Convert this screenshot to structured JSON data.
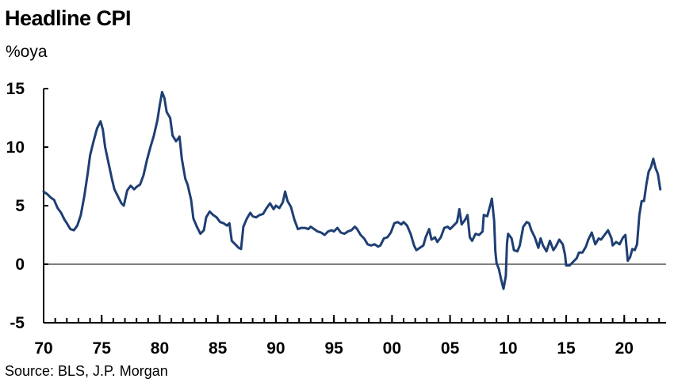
{
  "header": {
    "title": "Headline CPI",
    "unit": "%oya"
  },
  "footer": {
    "source": "Source: BLS, J.P. Morgan"
  },
  "chart_data": {
    "type": "line",
    "title": "Headline CPI",
    "ylabel": "%oya",
    "xlabel": "",
    "xlim": [
      1970,
      2023.6
    ],
    "ylim": [
      -5,
      15
    ],
    "yticks": [
      -5,
      0,
      5,
      10,
      15
    ],
    "xticks": [
      {
        "value": 1970,
        "label": "70"
      },
      {
        "value": 1975,
        "label": "75"
      },
      {
        "value": 1980,
        "label": "80"
      },
      {
        "value": 1985,
        "label": "85"
      },
      {
        "value": 1990,
        "label": "90"
      },
      {
        "value": 1995,
        "label": "95"
      },
      {
        "value": 2000,
        "label": "00"
      },
      {
        "value": 2005,
        "label": "05"
      },
      {
        "value": 2010,
        "label": "10"
      },
      {
        "value": 2015,
        "label": "15"
      },
      {
        "value": 2020,
        "label": "20"
      }
    ],
    "zero_line": true,
    "grid": false,
    "line_color": "#1f3f73",
    "series": [
      {
        "points": [
          [
            1970.0,
            6.2
          ],
          [
            1970.3,
            6.0
          ],
          [
            1970.6,
            5.7
          ],
          [
            1970.9,
            5.5
          ],
          [
            1971.2,
            4.8
          ],
          [
            1971.5,
            4.4
          ],
          [
            1971.8,
            3.8
          ],
          [
            1972.0,
            3.5
          ],
          [
            1972.3,
            3.0
          ],
          [
            1972.6,
            2.9
          ],
          [
            1972.9,
            3.3
          ],
          [
            1973.2,
            4.2
          ],
          [
            1973.5,
            5.8
          ],
          [
            1973.8,
            7.8
          ],
          [
            1974.0,
            9.3
          ],
          [
            1974.3,
            10.5
          ],
          [
            1974.6,
            11.6
          ],
          [
            1974.9,
            12.2
          ],
          [
            1975.1,
            11.5
          ],
          [
            1975.3,
            10.0
          ],
          [
            1975.6,
            8.6
          ],
          [
            1975.9,
            7.2
          ],
          [
            1976.1,
            6.4
          ],
          [
            1976.4,
            5.8
          ],
          [
            1976.7,
            5.2
          ],
          [
            1976.9,
            5.0
          ],
          [
            1977.2,
            6.3
          ],
          [
            1977.5,
            6.7
          ],
          [
            1977.8,
            6.4
          ],
          [
            1978.0,
            6.6
          ],
          [
            1978.3,
            6.8
          ],
          [
            1978.6,
            7.6
          ],
          [
            1978.9,
            8.9
          ],
          [
            1979.2,
            10.0
          ],
          [
            1979.5,
            11.0
          ],
          [
            1979.8,
            12.3
          ],
          [
            1980.0,
            13.6
          ],
          [
            1980.2,
            14.7
          ],
          [
            1980.4,
            14.2
          ],
          [
            1980.6,
            13.0
          ],
          [
            1980.9,
            12.5
          ],
          [
            1981.1,
            11.0
          ],
          [
            1981.4,
            10.5
          ],
          [
            1981.7,
            10.9
          ],
          [
            1981.9,
            9.0
          ],
          [
            1982.2,
            7.3
          ],
          [
            1982.4,
            6.8
          ],
          [
            1982.7,
            5.5
          ],
          [
            1982.9,
            3.9
          ],
          [
            1983.2,
            3.2
          ],
          [
            1983.5,
            2.6
          ],
          [
            1983.8,
            2.9
          ],
          [
            1984.0,
            4.0
          ],
          [
            1984.3,
            4.5
          ],
          [
            1984.6,
            4.2
          ],
          [
            1984.9,
            4.0
          ],
          [
            1985.2,
            3.6
          ],
          [
            1985.5,
            3.5
          ],
          [
            1985.8,
            3.3
          ],
          [
            1986.0,
            3.5
          ],
          [
            1986.2,
            2.0
          ],
          [
            1986.5,
            1.7
          ],
          [
            1986.8,
            1.4
          ],
          [
            1987.0,
            1.3
          ],
          [
            1987.2,
            3.2
          ],
          [
            1987.5,
            3.9
          ],
          [
            1987.8,
            4.4
          ],
          [
            1988.0,
            4.1
          ],
          [
            1988.3,
            4.0
          ],
          [
            1988.6,
            4.2
          ],
          [
            1988.9,
            4.3
          ],
          [
            1989.2,
            4.8
          ],
          [
            1989.5,
            5.2
          ],
          [
            1989.8,
            4.7
          ],
          [
            1990.0,
            5.0
          ],
          [
            1990.3,
            4.8
          ],
          [
            1990.6,
            5.3
          ],
          [
            1990.8,
            6.2
          ],
          [
            1991.0,
            5.4
          ],
          [
            1991.3,
            4.9
          ],
          [
            1991.6,
            3.8
          ],
          [
            1991.9,
            3.0
          ],
          [
            1992.2,
            3.1
          ],
          [
            1992.5,
            3.1
          ],
          [
            1992.8,
            3.0
          ],
          [
            1993.0,
            3.2
          ],
          [
            1993.3,
            3.0
          ],
          [
            1993.6,
            2.8
          ],
          [
            1993.9,
            2.7
          ],
          [
            1994.2,
            2.5
          ],
          [
            1994.5,
            2.8
          ],
          [
            1994.8,
            2.9
          ],
          [
            1995.0,
            2.8
          ],
          [
            1995.3,
            3.1
          ],
          [
            1995.6,
            2.7
          ],
          [
            1995.9,
            2.6
          ],
          [
            1996.2,
            2.8
          ],
          [
            1996.5,
            2.9
          ],
          [
            1996.8,
            3.2
          ],
          [
            1997.0,
            3.0
          ],
          [
            1997.3,
            2.5
          ],
          [
            1997.6,
            2.2
          ],
          [
            1997.9,
            1.7
          ],
          [
            1998.2,
            1.6
          ],
          [
            1998.5,
            1.7
          ],
          [
            1998.8,
            1.5
          ],
          [
            1999.0,
            1.6
          ],
          [
            1999.3,
            2.2
          ],
          [
            1999.6,
            2.3
          ],
          [
            1999.9,
            2.7
          ],
          [
            2000.2,
            3.5
          ],
          [
            2000.5,
            3.6
          ],
          [
            2000.8,
            3.4
          ],
          [
            2001.0,
            3.6
          ],
          [
            2001.3,
            3.3
          ],
          [
            2001.6,
            2.6
          ],
          [
            2001.9,
            1.6
          ],
          [
            2002.1,
            1.2
          ],
          [
            2002.4,
            1.4
          ],
          [
            2002.7,
            1.6
          ],
          [
            2002.9,
            2.3
          ],
          [
            2003.2,
            3.0
          ],
          [
            2003.4,
            2.1
          ],
          [
            2003.7,
            2.3
          ],
          [
            2003.9,
            1.9
          ],
          [
            2004.2,
            2.3
          ],
          [
            2004.5,
            3.1
          ],
          [
            2004.8,
            3.2
          ],
          [
            2005.0,
            3.0
          ],
          [
            2005.3,
            3.3
          ],
          [
            2005.6,
            3.6
          ],
          [
            2005.8,
            4.7
          ],
          [
            2006.0,
            3.4
          ],
          [
            2006.3,
            3.8
          ],
          [
            2006.5,
            4.2
          ],
          [
            2006.7,
            2.3
          ],
          [
            2006.9,
            2.0
          ],
          [
            2007.2,
            2.6
          ],
          [
            2007.5,
            2.5
          ],
          [
            2007.8,
            2.8
          ],
          [
            2007.9,
            4.2
          ],
          [
            2008.2,
            4.1
          ],
          [
            2008.5,
            5.2
          ],
          [
            2008.6,
            5.6
          ],
          [
            2008.8,
            3.7
          ],
          [
            2008.9,
            1.1
          ],
          [
            2009.0,
            0.1
          ],
          [
            2009.2,
            -0.4
          ],
          [
            2009.4,
            -1.3
          ],
          [
            2009.6,
            -2.1
          ],
          [
            2009.8,
            -1.0
          ],
          [
            2009.9,
            1.8
          ],
          [
            2010.0,
            2.6
          ],
          [
            2010.3,
            2.2
          ],
          [
            2010.5,
            1.2
          ],
          [
            2010.8,
            1.1
          ],
          [
            2011.0,
            1.6
          ],
          [
            2011.3,
            3.2
          ],
          [
            2011.6,
            3.6
          ],
          [
            2011.8,
            3.5
          ],
          [
            2012.0,
            2.9
          ],
          [
            2012.3,
            2.3
          ],
          [
            2012.6,
            1.4
          ],
          [
            2012.8,
            2.2
          ],
          [
            2013.0,
            1.6
          ],
          [
            2013.3,
            1.1
          ],
          [
            2013.6,
            2.0
          ],
          [
            2013.9,
            1.2
          ],
          [
            2014.1,
            1.5
          ],
          [
            2014.4,
            2.1
          ],
          [
            2014.7,
            1.7
          ],
          [
            2014.9,
            0.8
          ],
          [
            2015.0,
            -0.1
          ],
          [
            2015.3,
            -0.1
          ],
          [
            2015.6,
            0.2
          ],
          [
            2015.9,
            0.5
          ],
          [
            2016.1,
            1.0
          ],
          [
            2016.4,
            1.0
          ],
          [
            2016.7,
            1.5
          ],
          [
            2016.9,
            2.1
          ],
          [
            2017.2,
            2.7
          ],
          [
            2017.5,
            1.7
          ],
          [
            2017.8,
            2.2
          ],
          [
            2018.0,
            2.1
          ],
          [
            2018.3,
            2.5
          ],
          [
            2018.6,
            2.9
          ],
          [
            2018.9,
            2.2
          ],
          [
            2019.0,
            1.6
          ],
          [
            2019.3,
            1.9
          ],
          [
            2019.6,
            1.7
          ],
          [
            2019.9,
            2.3
          ],
          [
            2020.1,
            2.5
          ],
          [
            2020.3,
            0.3
          ],
          [
            2020.5,
            0.6
          ],
          [
            2020.7,
            1.3
          ],
          [
            2020.9,
            1.2
          ],
          [
            2021.1,
            1.7
          ],
          [
            2021.3,
            4.2
          ],
          [
            2021.5,
            5.4
          ],
          [
            2021.7,
            5.4
          ],
          [
            2021.9,
            6.8
          ],
          [
            2022.1,
            7.9
          ],
          [
            2022.3,
            8.3
          ],
          [
            2022.5,
            9.0
          ],
          [
            2022.7,
            8.2
          ],
          [
            2022.9,
            7.7
          ],
          [
            2023.1,
            6.4
          ]
        ]
      }
    ]
  }
}
